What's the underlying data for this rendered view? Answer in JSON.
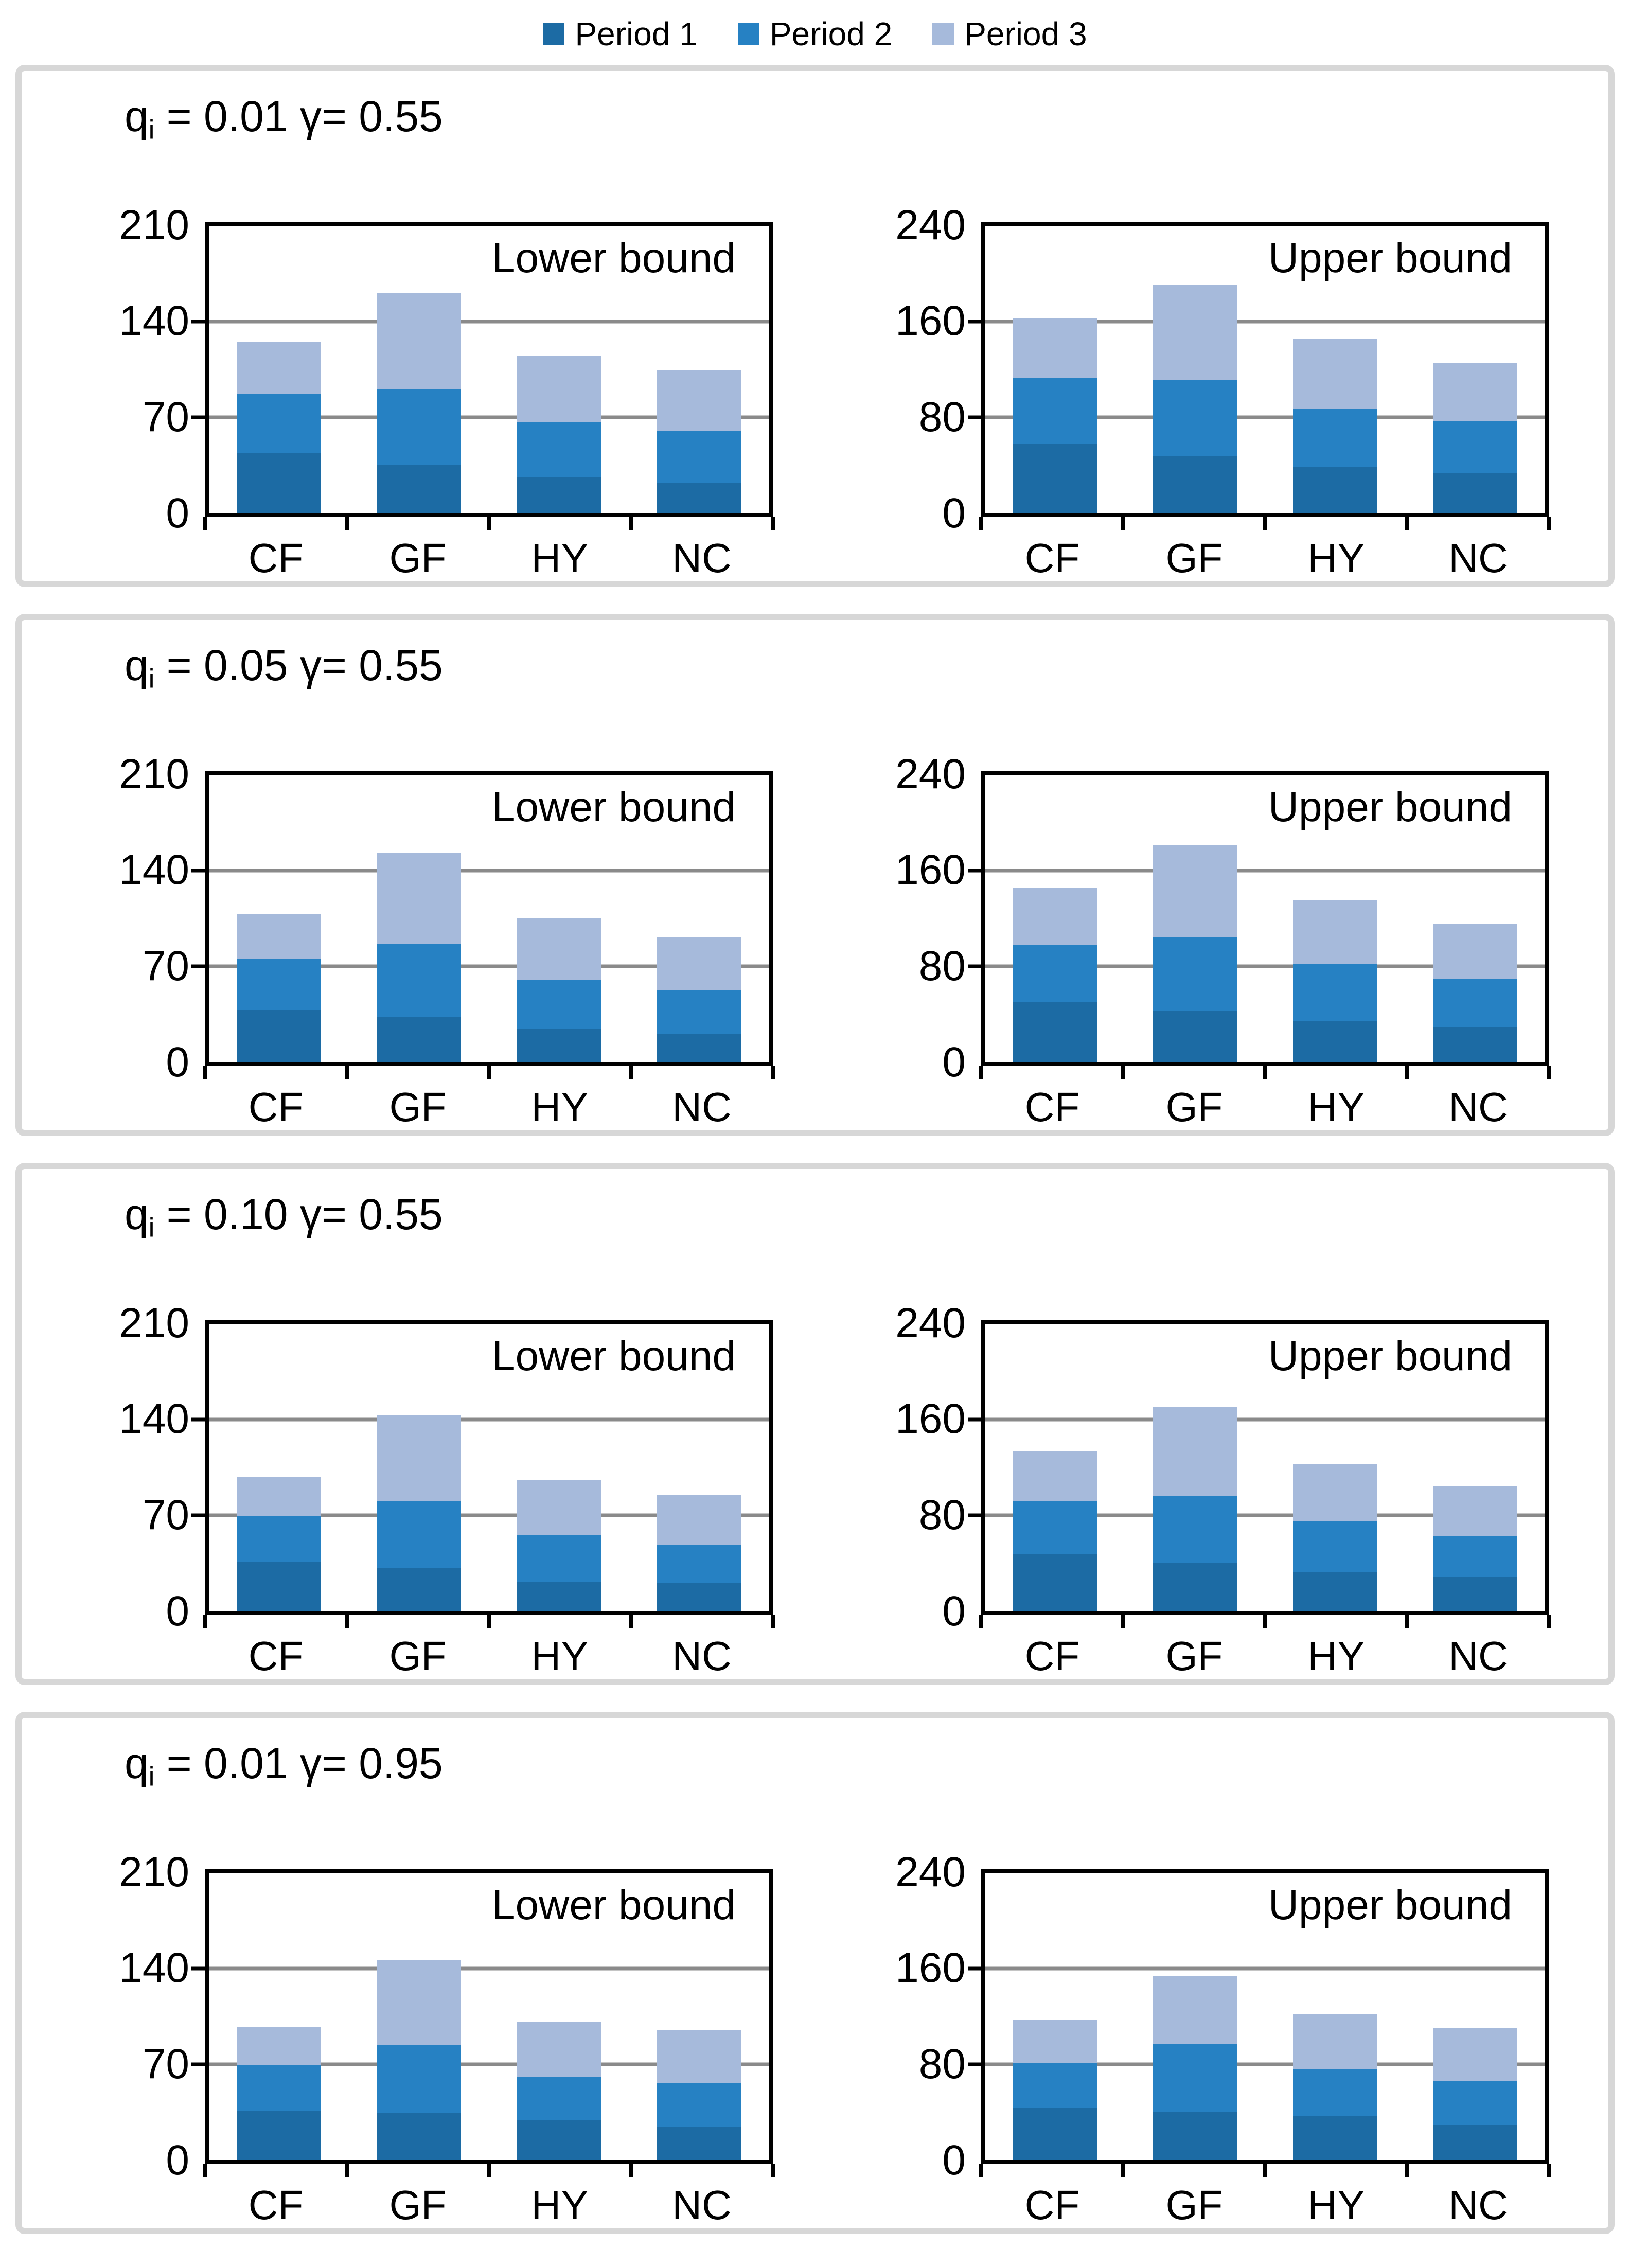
{
  "legend": {
    "items": [
      {
        "label": "Period 1",
        "color": "#1C6BA4"
      },
      {
        "label": "Period 2",
        "color": "#2681C3"
      },
      {
        "label": "Period 3",
        "color": "#A6BADB"
      }
    ]
  },
  "colors": {
    "period1": "#1C6BA4",
    "period2": "#2681C3",
    "period3": "#A6BADB",
    "gridline": "#8A8A8A",
    "axis": "#000000",
    "panel_border": "#D7D7D7"
  },
  "panels": [
    {
      "title": {
        "q_base": "q",
        "q_sub": "i",
        "rest": " = 0.01 γ= 0.55"
      }
    },
    {
      "title": {
        "q_base": "q",
        "q_sub": "i",
        "rest": " = 0.05 γ= 0.55"
      }
    },
    {
      "title": {
        "q_base": "q",
        "q_sub": "i",
        "rest": " = 0.10 γ= 0.55"
      }
    },
    {
      "title": {
        "q_base": "q",
        "q_sub": "i",
        "rest": " = 0.01 γ= 0.95"
      }
    }
  ],
  "chart_data": [
    {
      "type": "bar",
      "stacked": true,
      "panel_title": "qi = 0.01 γ= 0.55",
      "bound_label": "Lower bound",
      "ylim": [
        0,
        210
      ],
      "yticks": [
        210,
        140,
        70,
        0
      ],
      "grid": "horizontal",
      "legend_position": "top",
      "categories": [
        "CF",
        "GF",
        "HY",
        "NC"
      ],
      "series": [
        {
          "name": "Period 1",
          "values": [
            44,
            35,
            26,
            22
          ]
        },
        {
          "name": "Period 2",
          "values": [
            43,
            55,
            40,
            38
          ]
        },
        {
          "name": "Period 3",
          "values": [
            38,
            71,
            49,
            44
          ]
        }
      ]
    },
    {
      "type": "bar",
      "stacked": true,
      "panel_title": "qi = 0.01 γ= 0.55",
      "bound_label": "Upper bound",
      "ylim": [
        0,
        240
      ],
      "yticks": [
        240,
        160,
        80,
        0
      ],
      "grid": "horizontal",
      "legend_position": "top",
      "categories": [
        "CF",
        "GF",
        "HY",
        "NC"
      ],
      "series": [
        {
          "name": "Period 1",
          "values": [
            58,
            47,
            38,
            33
          ]
        },
        {
          "name": "Period 2",
          "values": [
            55,
            64,
            49,
            44
          ]
        },
        {
          "name": "Period 3",
          "values": [
            50,
            80,
            58,
            48
          ]
        }
      ]
    },
    {
      "type": "bar",
      "stacked": true,
      "panel_title": "qi = 0.05 γ= 0.55",
      "bound_label": "Lower bound",
      "ylim": [
        0,
        210
      ],
      "yticks": [
        210,
        140,
        70,
        0
      ],
      "grid": "horizontal",
      "legend_position": "top",
      "categories": [
        "CF",
        "GF",
        "HY",
        "NC"
      ],
      "series": [
        {
          "name": "Period 1",
          "values": [
            38,
            33,
            24,
            20
          ]
        },
        {
          "name": "Period 2",
          "values": [
            37,
            53,
            36,
            32
          ]
        },
        {
          "name": "Period 3",
          "values": [
            33,
            67,
            45,
            39
          ]
        }
      ]
    },
    {
      "type": "bar",
      "stacked": true,
      "panel_title": "qi = 0.05 γ= 0.55",
      "bound_label": "Upper bound",
      "ylim": [
        0,
        240
      ],
      "yticks": [
        240,
        160,
        80,
        0
      ],
      "grid": "horizontal",
      "legend_position": "top",
      "categories": [
        "CF",
        "GF",
        "HY",
        "NC"
      ],
      "series": [
        {
          "name": "Period 1",
          "values": [
            50,
            43,
            34,
            29
          ]
        },
        {
          "name": "Period 2",
          "values": [
            48,
            61,
            48,
            40
          ]
        },
        {
          "name": "Period 3",
          "values": [
            47,
            77,
            53,
            46
          ]
        }
      ]
    },
    {
      "type": "bar",
      "stacked": true,
      "panel_title": "qi = 0.10 γ= 0.55",
      "bound_label": "Lower bound",
      "ylim": [
        0,
        210
      ],
      "yticks": [
        210,
        140,
        70,
        0
      ],
      "grid": "horizontal",
      "legend_position": "top",
      "categories": [
        "CF",
        "GF",
        "HY",
        "NC"
      ],
      "series": [
        {
          "name": "Period 1",
          "values": [
            36,
            31,
            21,
            20
          ]
        },
        {
          "name": "Period 2",
          "values": [
            33,
            49,
            34,
            28
          ]
        },
        {
          "name": "Period 3",
          "values": [
            29,
            63,
            41,
            37
          ]
        }
      ]
    },
    {
      "type": "bar",
      "stacked": true,
      "panel_title": "qi = 0.10 γ= 0.55",
      "bound_label": "Upper bound",
      "ylim": [
        0,
        240
      ],
      "yticks": [
        240,
        160,
        80,
        0
      ],
      "grid": "horizontal",
      "legend_position": "top",
      "categories": [
        "CF",
        "GF",
        "HY",
        "NC"
      ],
      "series": [
        {
          "name": "Period 1",
          "values": [
            47,
            40,
            32,
            28
          ]
        },
        {
          "name": "Period 2",
          "values": [
            45,
            56,
            43,
            34
          ]
        },
        {
          "name": "Period 3",
          "values": [
            41,
            74,
            48,
            42
          ]
        }
      ]
    },
    {
      "type": "bar",
      "stacked": true,
      "panel_title": "qi = 0.01 γ= 0.95",
      "bound_label": "Lower bound",
      "ylim": [
        0,
        210
      ],
      "yticks": [
        210,
        140,
        70,
        0
      ],
      "grid": "horizontal",
      "legend_position": "top",
      "categories": [
        "CF",
        "GF",
        "HY",
        "NC"
      ],
      "series": [
        {
          "name": "Period 1",
          "values": [
            36,
            34,
            29,
            24
          ]
        },
        {
          "name": "Period 2",
          "values": [
            33,
            50,
            32,
            32
          ]
        },
        {
          "name": "Period 3",
          "values": [
            28,
            62,
            40,
            39
          ]
        }
      ]
    },
    {
      "type": "bar",
      "stacked": true,
      "panel_title": "qi = 0.01 γ= 0.95",
      "bound_label": "Upper bound",
      "ylim": [
        0,
        240
      ],
      "yticks": [
        240,
        160,
        80,
        0
      ],
      "grid": "horizontal",
      "legend_position": "top",
      "categories": [
        "CF",
        "GF",
        "HY",
        "NC"
      ],
      "series": [
        {
          "name": "Period 1",
          "values": [
            43,
            40,
            37,
            29
          ]
        },
        {
          "name": "Period 2",
          "values": [
            38,
            57,
            39,
            37
          ]
        },
        {
          "name": "Period 3",
          "values": [
            36,
            57,
            46,
            44
          ]
        }
      ]
    }
  ]
}
